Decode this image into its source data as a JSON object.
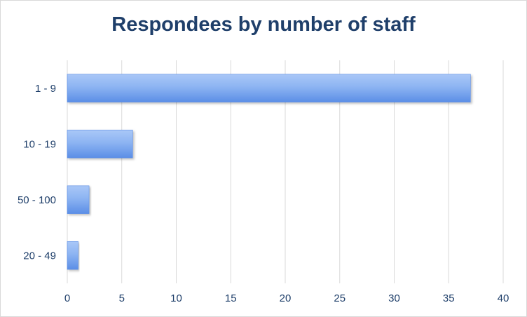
{
  "chart_data": {
    "type": "bar",
    "orientation": "horizontal",
    "title": "Respondees by number of staff",
    "categories": [
      "1 - 9",
      "10 - 19",
      "50 - 100",
      "20 - 49"
    ],
    "values": [
      37,
      6,
      2,
      1
    ],
    "xlim": [
      0,
      40
    ],
    "x_ticks": [
      0,
      5,
      10,
      15,
      20,
      25,
      30,
      35,
      40
    ],
    "grid": "vertical",
    "legend": "none",
    "bar_color": "#7ea9ef",
    "bar_color_dark": "#5b8ee6",
    "text_color": "#1f3f6a",
    "grid_color": "#d9d9d9"
  }
}
